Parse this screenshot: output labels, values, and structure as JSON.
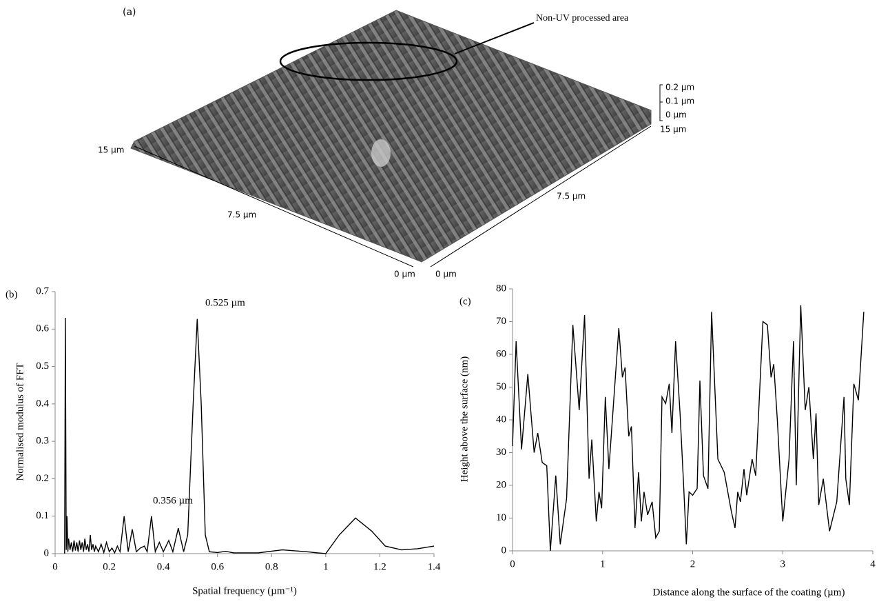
{
  "figure_a": {
    "panel": "(a)",
    "annotation": "Non-UV processed area",
    "axis_labels": [
      "15 µm",
      "7.5 µm",
      "0 µm",
      "0 µm",
      "7.5 µm",
      "15 µm"
    ],
    "height_scale": [
      "0.2 µm",
      "0.1 µm",
      "0 µm"
    ]
  },
  "chart_data": [
    {
      "type": "line",
      "panel": "(b)",
      "xlabel": "Spatial frequency (µm⁻¹)",
      "ylabel": "Normalised modulus of FFT",
      "annotations": [
        "0.525 µm",
        "0.356 µm"
      ],
      "color": "#000000",
      "xlim": [
        0,
        1.4
      ],
      "xticks": [
        0,
        0.2,
        0.4,
        0.6,
        0.8,
        1,
        1.2,
        1.4
      ],
      "ylim": [
        0,
        0.7
      ],
      "yticks": [
        0,
        0.1,
        0.2,
        0.3,
        0.4,
        0.5,
        0.6,
        0.7
      ],
      "x": [
        0.035,
        0.038,
        0.041,
        0.044,
        0.047,
        0.05,
        0.055,
        0.06,
        0.065,
        0.07,
        0.075,
        0.08,
        0.085,
        0.09,
        0.095,
        0.1,
        0.105,
        0.11,
        0.115,
        0.12,
        0.125,
        0.13,
        0.135,
        0.14,
        0.145,
        0.15,
        0.16,
        0.17,
        0.18,
        0.19,
        0.2,
        0.21,
        0.22,
        0.23,
        0.24,
        0.255,
        0.27,
        0.285,
        0.3,
        0.315,
        0.33,
        0.34,
        0.356,
        0.37,
        0.385,
        0.4,
        0.42,
        0.435,
        0.455,
        0.475,
        0.49,
        0.51,
        0.525,
        0.54,
        0.555,
        0.57,
        0.6,
        0.63,
        0.66,
        0.75,
        0.84,
        0.93,
        0.97,
        1.0,
        1.05,
        1.11,
        1.17,
        1.22,
        1.28,
        1.34,
        1.4
      ],
      "values": [
        0,
        0.63,
        0.01,
        0.1,
        0.005,
        0.04,
        0.01,
        0.03,
        0.005,
        0.035,
        0.008,
        0.03,
        0.005,
        0.035,
        0.01,
        0.03,
        0.005,
        0.04,
        0.01,
        0.025,
        0.005,
        0.05,
        0.01,
        0.025,
        0.005,
        0.02,
        0.005,
        0.025,
        0.003,
        0.03,
        0.005,
        0.015,
        0.002,
        0.02,
        0.005,
        0.1,
        0.005,
        0.065,
        0.005,
        0.015,
        0.02,
        0.005,
        0.1,
        0.005,
        0.03,
        0.005,
        0.035,
        0.005,
        0.068,
        0.005,
        0.05,
        0.4,
        0.627,
        0.4,
        0.05,
        0.005,
        0.003,
        0.006,
        0.002,
        0.002,
        0.01,
        0.005,
        0.002,
        0,
        0.05,
        0.095,
        0.06,
        0.02,
        0.01,
        0.013,
        0.02
      ]
    },
    {
      "type": "line",
      "panel": "(c)",
      "xlabel": "Distance along the surface of the coating (µm)",
      "ylabel": "Height above the surface (nm)",
      "color": "#000000",
      "xlim": [
        0,
        4
      ],
      "xticks": [
        0,
        1,
        2,
        3,
        4
      ],
      "ylim": [
        0,
        80
      ],
      "yticks": [
        0,
        10,
        20,
        30,
        40,
        50,
        60,
        70,
        80
      ],
      "x": [
        0,
        0.04,
        0.1,
        0.17,
        0.24,
        0.28,
        0.33,
        0.38,
        0.42,
        0.48,
        0.53,
        0.6,
        0.67,
        0.74,
        0.8,
        0.85,
        0.88,
        0.93,
        0.96,
        0.99,
        1.03,
        1.07,
        1.18,
        1.22,
        1.25,
        1.29,
        1.32,
        1.36,
        1.4,
        1.43,
        1.46,
        1.5,
        1.55,
        1.59,
        1.63,
        1.66,
        1.7,
        1.74,
        1.77,
        1.81,
        1.86,
        1.9,
        1.93,
        1.96,
        2.0,
        2.05,
        2.08,
        2.12,
        2.17,
        2.21,
        2.28,
        2.35,
        2.43,
        2.47,
        2.5,
        2.53,
        2.57,
        2.6,
        2.66,
        2.7,
        2.78,
        2.83,
        2.87,
        2.9,
        2.94,
        3.0,
        3.07,
        3.12,
        3.15,
        3.2,
        3.25,
        3.29,
        3.34,
        3.37,
        3.4,
        3.45,
        3.52,
        3.6,
        3.68,
        3.7,
        3.74,
        3.79,
        3.84,
        3.9
      ],
      "values": [
        32,
        64,
        31,
        54,
        30,
        36,
        27,
        26,
        0,
        23,
        2,
        16,
        69,
        43,
        72,
        22,
        34,
        9,
        18,
        13,
        47,
        25,
        68,
        53,
        56,
        35,
        38,
        7,
        24,
        9,
        18,
        11,
        15,
        4,
        6,
        47,
        45,
        51,
        36,
        64,
        42,
        20,
        2,
        18,
        17,
        19,
        52,
        23,
        19,
        73,
        28,
        24,
        12,
        7,
        18,
        15,
        25,
        17,
        28,
        23,
        70,
        69,
        53,
        57,
        40,
        9,
        28,
        64,
        20,
        75,
        43,
        50,
        28,
        42,
        14,
        22,
        6,
        15,
        47,
        22,
        14,
        51,
        46,
        73
      ]
    }
  ]
}
